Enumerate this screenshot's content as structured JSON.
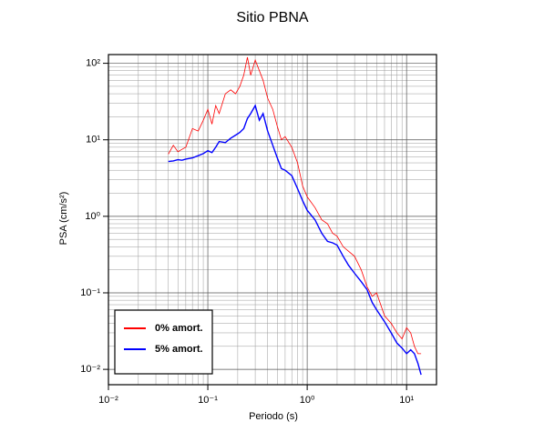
{
  "chart_data": {
    "type": "line",
    "title": "Sitio PBNA",
    "xlabel": "Periodo (s)",
    "ylabel": "PSA (cm/s²)",
    "log_x": true,
    "log_y": true,
    "grid": true,
    "minor_grid": true,
    "legend_position": "lower left",
    "xlim": [
      0.01,
      20
    ],
    "ylim": [
      0.0063,
      130
    ],
    "xticks": [
      {
        "value": 0.01,
        "label": "10⁻²"
      },
      {
        "value": 0.1,
        "label": "10⁻¹"
      },
      {
        "value": 1,
        "label": "10⁰"
      },
      {
        "value": 10,
        "label": "10¹"
      }
    ],
    "yticks": [
      {
        "value": 0.01,
        "label": "10⁻²"
      },
      {
        "value": 0.1,
        "label": "10⁻¹"
      },
      {
        "value": 1,
        "label": "10⁰"
      },
      {
        "value": 10,
        "label": "10¹"
      },
      {
        "value": 100,
        "label": "10²"
      }
    ],
    "x": [
      0.04,
      0.045,
      0.05,
      0.055,
      0.06,
      0.07,
      0.08,
      0.09,
      0.1,
      0.11,
      0.12,
      0.13,
      0.15,
      0.17,
      0.19,
      0.21,
      0.23,
      0.25,
      0.27,
      0.3,
      0.33,
      0.36,
      0.4,
      0.45,
      0.5,
      0.55,
      0.6,
      0.7,
      0.8,
      0.9,
      1.0,
      1.2,
      1.4,
      1.6,
      1.8,
      2.0,
      2.3,
      2.6,
      3.0,
      3.5,
      4,
      4.5,
      5,
      6,
      7,
      8,
      9,
      10,
      11,
      12,
      13,
      14
    ],
    "series": [
      {
        "name": "0% amort.",
        "color": "#ff0000",
        "width": 0.8,
        "values": [
          6.5,
          8.5,
          7,
          7.5,
          8,
          14,
          13,
          18,
          25,
          16,
          28,
          22,
          40,
          45,
          40,
          50,
          70,
          120,
          70,
          110,
          80,
          60,
          35,
          25,
          15,
          10,
          11,
          8,
          5,
          2.5,
          1.8,
          1.3,
          0.9,
          0.8,
          0.6,
          0.55,
          0.4,
          0.35,
          0.3,
          0.2,
          0.12,
          0.09,
          0.1,
          0.05,
          0.04,
          0.03,
          0.025,
          0.035,
          0.03,
          0.02,
          0.016,
          0.016
        ]
      },
      {
        "name": "5% amort.",
        "color": "#0000ff",
        "width": 1.4,
        "values": [
          5.2,
          5.3,
          5.5,
          5.4,
          5.6,
          5.8,
          6.2,
          6.6,
          7.2,
          6.8,
          8.0,
          9.5,
          9.2,
          10.5,
          11.5,
          12.5,
          14,
          19,
          22,
          28,
          18,
          22,
          13,
          8.5,
          5.8,
          4.2,
          4.0,
          3.4,
          2.3,
          1.6,
          1.2,
          0.9,
          0.6,
          0.47,
          0.45,
          0.42,
          0.3,
          0.23,
          0.18,
          0.14,
          0.11,
          0.075,
          0.06,
          0.042,
          0.03,
          0.022,
          0.019,
          0.016,
          0.018,
          0.016,
          0.012,
          0.0085
        ]
      }
    ]
  }
}
